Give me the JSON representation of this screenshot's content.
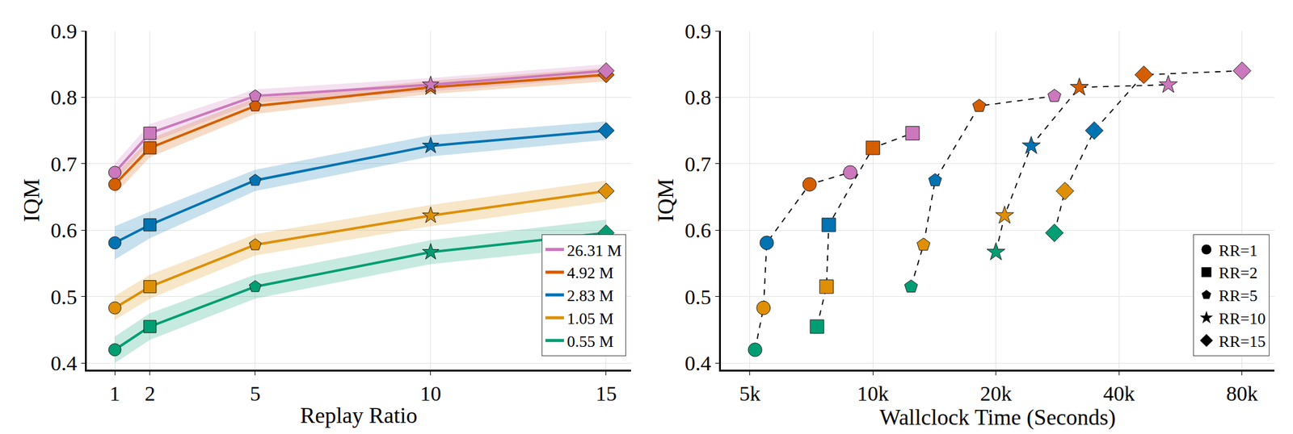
{
  "chart_data": [
    {
      "type": "line",
      "x_label": "Replay Ratio",
      "y_label": "IQM",
      "x": [
        1,
        2,
        5,
        10,
        15
      ],
      "xlim": [
        0.2,
        15.7
      ],
      "xticks": [
        1,
        2,
        5,
        10,
        15
      ],
      "ylim": [
        0.39,
        0.9
      ],
      "yticks": [
        0.4,
        0.5,
        0.6,
        0.7,
        0.8,
        0.9
      ],
      "grid": true,
      "legend": "lower right",
      "series": [
        {
          "name": "0.55 M",
          "color": "#029e73",
          "values": [
            0.42,
            0.455,
            0.515,
            0.567,
            0.596
          ],
          "error": [
            0.02,
            0.02,
            0.018,
            0.018,
            0.02
          ]
        },
        {
          "name": "1.05 M",
          "color": "#de8f05",
          "values": [
            0.483,
            0.515,
            0.578,
            0.622,
            0.659
          ],
          "error": [
            0.018,
            0.018,
            0.016,
            0.016,
            0.016
          ]
        },
        {
          "name": "2.83 M",
          "color": "#0173b2",
          "values": [
            0.581,
            0.608,
            0.675,
            0.727,
            0.75
          ],
          "error": [
            0.025,
            0.02,
            0.016,
            0.016,
            0.014
          ]
        },
        {
          "name": "4.92 M",
          "color": "#d55e00",
          "values": [
            0.669,
            0.724,
            0.787,
            0.815,
            0.834
          ],
          "error": [
            0.015,
            0.014,
            0.012,
            0.01,
            0.01
          ]
        },
        {
          "name": "26.31 M",
          "color": "#cc78bc",
          "values": [
            0.687,
            0.746,
            0.802,
            0.819,
            0.84
          ],
          "error": [
            0.014,
            0.014,
            0.01,
            0.01,
            0.01
          ]
        }
      ]
    },
    {
      "type": "scatter",
      "x_label": "Wallclock Time (Seconds)",
      "y_label": "IQM",
      "log": "x",
      "xlim": [
        4250,
        96000
      ],
      "xticks": [
        {
          "value": 5000,
          "label": "5k"
        },
        {
          "value": 10000,
          "label": "10k"
        },
        {
          "value": 20000,
          "label": "20k"
        },
        {
          "value": 40000,
          "label": "40k"
        },
        {
          "value": 80000,
          "label": "80k"
        }
      ],
      "ylim": [
        0.39,
        0.9
      ],
      "yticks": [
        0.4,
        0.5,
        0.6,
        0.7,
        0.8,
        0.9
      ],
      "grid": true,
      "legend": "lower right",
      "series": [
        {
          "name": "RR=1",
          "marker": "circle",
          "line_style": "dashed",
          "color": "#000000",
          "x": [
            5150,
            5400,
            5500,
            7000,
            8800
          ],
          "values": [
            0.42,
            0.483,
            0.581,
            0.669,
            0.687
          ],
          "colors": [
            "#029e73",
            "#de8f05",
            "#0173b2",
            "#d55e00",
            "#cc78bc"
          ]
        },
        {
          "name": "RR=2",
          "marker": "square",
          "line_style": "dashed",
          "color": "#000000",
          "x": [
            7300,
            7700,
            7800,
            10000,
            12500
          ],
          "values": [
            0.455,
            0.515,
            0.608,
            0.724,
            0.746
          ],
          "colors": [
            "#029e73",
            "#de8f05",
            "#0173b2",
            "#d55e00",
            "#cc78bc"
          ]
        },
        {
          "name": "RR=5",
          "marker": "pentagon",
          "line_style": "dashed",
          "color": "#000000",
          "x": [
            12400,
            13300,
            14200,
            18200,
            27800
          ],
          "values": [
            0.515,
            0.578,
            0.675,
            0.787,
            0.802
          ],
          "colors": [
            "#029e73",
            "#de8f05",
            "#0173b2",
            "#d55e00",
            "#cc78bc"
          ]
        },
        {
          "name": "RR=10",
          "marker": "star",
          "line_style": "dashed",
          "color": "#000000",
          "x": [
            20000,
            21000,
            24400,
            32000,
            52800
          ],
          "values": [
            0.567,
            0.622,
            0.727,
            0.815,
            0.819
          ],
          "colors": [
            "#029e73",
            "#de8f05",
            "#0173b2",
            "#d55e00",
            "#cc78bc"
          ]
        },
        {
          "name": "RR=15",
          "marker": "diamond",
          "line_style": "dashed",
          "color": "#000000",
          "x": [
            27800,
            29500,
            34800,
            46000,
            80000
          ],
          "values": [
            0.596,
            0.659,
            0.75,
            0.834,
            0.84
          ],
          "colors": [
            "#029e73",
            "#de8f05",
            "#0173b2",
            "#d55e00",
            "#cc78bc"
          ]
        }
      ]
    }
  ]
}
